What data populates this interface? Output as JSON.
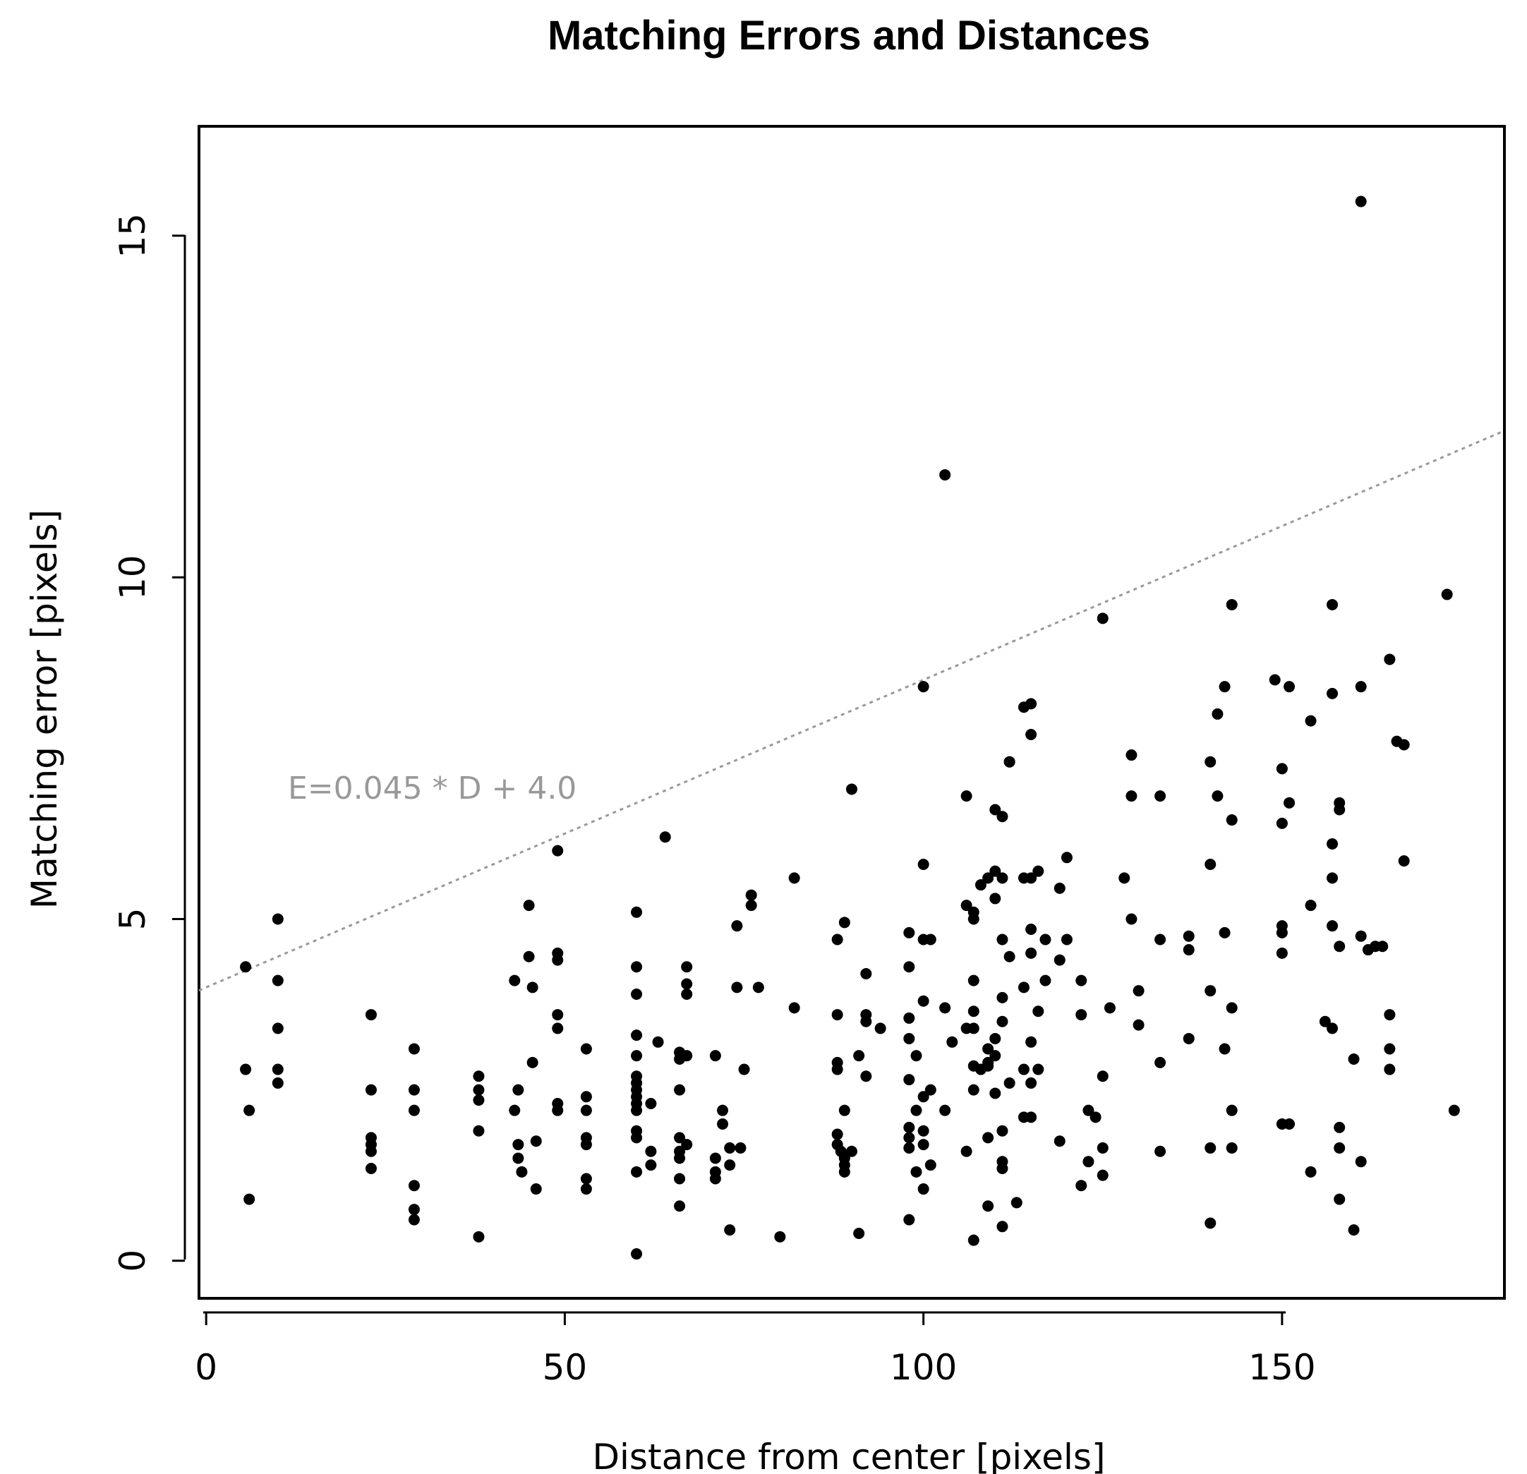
{
  "chart_data": {
    "type": "scatter",
    "title": "Matching Errors and Distances",
    "xlabel": "Distance from center [pixels]",
    "ylabel": "Matching error [pixels]",
    "xlim": [
      -1,
      181
    ],
    "ylim": [
      -0.55,
      16.6
    ],
    "xticks": [
      0,
      50,
      100,
      150
    ],
    "yticks": [
      0,
      5,
      10,
      15
    ],
    "grid": false,
    "legend": "none",
    "point_color": "#000000",
    "fit_line": {
      "label": "E=0.045 * D + 4.0",
      "slope": 0.045,
      "intercept": 4.0,
      "color": "#999999",
      "style": "dotted"
    },
    "points": [
      [
        5.5,
        4.3
      ],
      [
        5.5,
        2.8
      ],
      [
        6,
        2.2
      ],
      [
        6,
        0.9
      ],
      [
        10,
        5
      ],
      [
        10,
        4.1
      ],
      [
        10,
        3.4
      ],
      [
        10,
        2.8
      ],
      [
        10,
        2.6
      ],
      [
        23,
        3.6
      ],
      [
        23,
        2.5
      ],
      [
        23,
        1.8
      ],
      [
        23,
        1.7
      ],
      [
        23,
        1.6
      ],
      [
        23,
        1.35
      ],
      [
        29,
        3.1
      ],
      [
        29,
        2.5
      ],
      [
        29,
        2.2
      ],
      [
        29,
        1.1
      ],
      [
        29,
        0.75
      ],
      [
        29,
        0.6
      ],
      [
        38,
        2.7
      ],
      [
        38,
        2.5
      ],
      [
        38,
        2.35
      ],
      [
        38,
        1.9
      ],
      [
        38,
        0.35
      ],
      [
        43,
        4.1
      ],
      [
        43,
        2.2
      ],
      [
        43.5,
        2.5
      ],
      [
        43.5,
        1.7
      ],
      [
        43.5,
        1.5
      ],
      [
        44,
        1.3
      ],
      [
        45,
        5.2
      ],
      [
        45,
        4.45
      ],
      [
        45.5,
        4
      ],
      [
        45.5,
        2.9
      ],
      [
        46,
        1.75
      ],
      [
        46,
        1.05
      ],
      [
        49,
        6
      ],
      [
        49,
        4.5
      ],
      [
        49,
        4.4
      ],
      [
        49,
        3.6
      ],
      [
        49,
        3.4
      ],
      [
        49,
        2.3
      ],
      [
        49,
        2.2
      ],
      [
        53,
        3.1
      ],
      [
        53,
        2.4
      ],
      [
        53,
        2.2
      ],
      [
        53,
        1.8
      ],
      [
        53,
        1.7
      ],
      [
        53,
        1.2
      ],
      [
        53,
        1.05
      ],
      [
        60,
        5.1
      ],
      [
        60,
        4.3
      ],
      [
        60,
        3.9
      ],
      [
        60,
        3.3
      ],
      [
        60,
        3
      ],
      [
        60,
        2.7
      ],
      [
        60,
        2.6
      ],
      [
        60,
        2.5
      ],
      [
        60,
        2.4
      ],
      [
        60,
        2.3
      ],
      [
        60,
        2.2
      ],
      [
        60,
        1.9
      ],
      [
        60,
        1.8
      ],
      [
        60,
        1.3
      ],
      [
        60,
        0.1
      ],
      [
        62,
        2.3
      ],
      [
        62,
        1.6
      ],
      [
        62,
        1.4
      ],
      [
        63,
        3.2
      ],
      [
        64,
        6.2
      ],
      [
        66,
        3.05
      ],
      [
        66,
        2.95
      ],
      [
        66,
        2.5
      ],
      [
        66,
        1.8
      ],
      [
        66,
        1.6
      ],
      [
        66,
        1.5
      ],
      [
        66,
        1.2
      ],
      [
        66,
        0.8
      ],
      [
        67,
        4.3
      ],
      [
        67,
        4.05
      ],
      [
        67,
        3.9
      ],
      [
        67,
        3.0
      ],
      [
        67,
        1.7
      ],
      [
        71,
        3
      ],
      [
        71,
        1.5
      ],
      [
        71,
        1.3
      ],
      [
        71,
        1.2
      ],
      [
        72,
        2.2
      ],
      [
        72,
        2.0
      ],
      [
        73,
        1.65
      ],
      [
        73,
        1.4
      ],
      [
        73,
        0.45
      ],
      [
        74,
        4.9
      ],
      [
        74,
        4.0
      ],
      [
        74.5,
        1.65
      ],
      [
        75,
        2.8
      ],
      [
        76,
        5.35
      ],
      [
        76,
        5.2
      ],
      [
        77,
        4.0
      ],
      [
        80,
        0.35
      ],
      [
        82,
        5.6
      ],
      [
        82,
        3.7
      ],
      [
        88,
        4.7
      ],
      [
        88,
        3.6
      ],
      [
        88,
        2.9
      ],
      [
        88,
        2.8
      ],
      [
        88,
        1.85
      ],
      [
        88,
        1.7
      ],
      [
        88.5,
        1.6
      ],
      [
        89,
        4.95
      ],
      [
        89,
        1.5
      ],
      [
        89,
        1.4
      ],
      [
        89,
        1.3
      ],
      [
        89,
        2.2
      ],
      [
        90,
        1.6
      ],
      [
        90,
        6.9
      ],
      [
        91,
        3.0
      ],
      [
        91,
        0.4
      ],
      [
        92,
        4.2
      ],
      [
        92,
        3.6
      ],
      [
        92,
        3.5
      ],
      [
        92,
        2.7
      ],
      [
        94,
        3.4
      ],
      [
        98,
        4.8
      ],
      [
        98,
        4.3
      ],
      [
        98,
        3.55
      ],
      [
        98,
        3.25
      ],
      [
        98,
        2.65
      ],
      [
        98,
        1.95
      ],
      [
        98,
        1.8
      ],
      [
        98,
        1.65
      ],
      [
        98,
        0.6
      ],
      [
        99,
        3.0
      ],
      [
        99,
        2.2
      ],
      [
        99,
        1.3
      ],
      [
        100,
        8.4
      ],
      [
        100,
        5.8
      ],
      [
        100,
        4.7
      ],
      [
        100,
        3.8
      ],
      [
        100,
        2.4
      ],
      [
        100,
        1.9
      ],
      [
        100,
        1.7
      ],
      [
        100,
        1.05
      ],
      [
        101,
        4.7
      ],
      [
        101,
        2.5
      ],
      [
        101,
        1.4
      ],
      [
        103,
        11.5
      ],
      [
        103,
        3.7
      ],
      [
        103,
        2.2
      ],
      [
        104,
        3.2
      ],
      [
        106,
        6.8
      ],
      [
        106,
        5.2
      ],
      [
        106,
        3.4
      ],
      [
        106,
        1.6
      ],
      [
        107,
        5.1
      ],
      [
        107,
        5.0
      ],
      [
        107,
        4.1
      ],
      [
        107,
        3.65
      ],
      [
        107,
        3.4
      ],
      [
        107,
        2.85
      ],
      [
        107,
        2.5
      ],
      [
        107,
        0.3
      ],
      [
        108,
        5.5
      ],
      [
        108,
        2.8
      ],
      [
        109,
        5.6
      ],
      [
        109,
        3.1
      ],
      [
        109,
        2.9
      ],
      [
        109,
        2.85
      ],
      [
        109,
        1.8
      ],
      [
        109,
        0.8
      ],
      [
        110,
        6.6
      ],
      [
        110,
        5.7
      ],
      [
        110,
        5.3
      ],
      [
        110,
        3.25
      ],
      [
        110,
        3.0
      ],
      [
        110,
        2.45
      ],
      [
        111,
        6.5
      ],
      [
        111,
        5.6
      ],
      [
        111,
        4.7
      ],
      [
        111,
        3.85
      ],
      [
        111,
        3.5
      ],
      [
        111,
        1.9
      ],
      [
        111,
        1.45
      ],
      [
        111,
        1.35
      ],
      [
        111,
        0.5
      ],
      [
        112,
        7.3
      ],
      [
        112,
        4.45
      ],
      [
        112,
        2.6
      ],
      [
        112,
        7.3
      ],
      [
        113,
        0.85
      ],
      [
        114,
        8.1
      ],
      [
        114,
        5.6
      ],
      [
        114,
        4.0
      ],
      [
        114,
        2.8
      ],
      [
        114,
        2.1
      ],
      [
        115,
        8.15
      ],
      [
        115,
        7.7
      ],
      [
        115,
        5.6
      ],
      [
        115,
        4.85
      ],
      [
        115,
        4.5
      ],
      [
        115,
        3.2
      ],
      [
        115,
        2.6
      ],
      [
        115,
        2.1
      ],
      [
        116,
        5.7
      ],
      [
        116,
        3.65
      ],
      [
        116,
        2.8
      ],
      [
        117,
        4.7
      ],
      [
        117,
        4.1
      ],
      [
        119,
        5.45
      ],
      [
        119,
        4.4
      ],
      [
        119,
        1.75
      ],
      [
        120,
        5.9
      ],
      [
        120,
        4.7
      ],
      [
        122,
        4.1
      ],
      [
        122,
        3.6
      ],
      [
        122,
        1.1
      ],
      [
        123,
        2.2
      ],
      [
        123,
        1.45
      ],
      [
        124,
        2.1
      ],
      [
        125,
        9.4
      ],
      [
        125,
        2.7
      ],
      [
        125,
        1.65
      ],
      [
        125,
        1.25
      ],
      [
        126,
        3.7
      ],
      [
        128,
        5.6
      ],
      [
        129,
        7.4
      ],
      [
        129,
        6.8
      ],
      [
        129,
        5.0
      ],
      [
        130,
        3.95
      ],
      [
        130,
        3.45
      ],
      [
        133,
        6.8
      ],
      [
        133,
        4.7
      ],
      [
        133,
        2.9
      ],
      [
        133,
        1.6
      ],
      [
        137,
        4.55
      ],
      [
        137,
        3.25
      ],
      [
        137,
        4.75
      ],
      [
        140,
        7.3
      ],
      [
        140,
        5.8
      ],
      [
        140,
        3.95
      ],
      [
        140,
        1.65
      ],
      [
        140,
        0.55
      ],
      [
        141,
        8.0
      ],
      [
        141,
        6.8
      ],
      [
        142,
        8.4
      ],
      [
        142,
        4.8
      ],
      [
        142,
        3.1
      ],
      [
        143,
        9.6
      ],
      [
        143,
        6.45
      ],
      [
        143,
        3.7
      ],
      [
        143,
        2.2
      ],
      [
        143,
        1.65
      ],
      [
        149,
        8.5
      ],
      [
        150,
        7.2
      ],
      [
        150,
        6.4
      ],
      [
        150,
        4.9
      ],
      [
        150,
        4.8
      ],
      [
        150,
        4.5
      ],
      [
        150,
        2.0
      ],
      [
        151,
        8.4
      ],
      [
        151,
        6.7
      ],
      [
        151,
        2.0
      ],
      [
        154,
        7.9
      ],
      [
        154,
        5.2
      ],
      [
        154,
        1.3
      ],
      [
        156,
        3.5
      ],
      [
        157,
        3.4
      ],
      [
        157,
        9.6
      ],
      [
        157,
        6.1
      ],
      [
        157,
        5.6
      ],
      [
        157,
        4.9
      ],
      [
        157,
        8.3
      ],
      [
        158,
        6.6
      ],
      [
        158,
        6.7
      ],
      [
        158,
        4.6
      ],
      [
        158,
        1.95
      ],
      [
        158,
        1.65
      ],
      [
        158,
        0.9
      ],
      [
        160,
        2.95
      ],
      [
        160,
        0.45
      ],
      [
        161,
        15.5
      ],
      [
        161,
        8.4
      ],
      [
        161,
        4.75
      ],
      [
        161,
        1.45
      ],
      [
        162,
        4.55
      ],
      [
        163,
        4.6
      ],
      [
        164,
        4.6
      ],
      [
        165,
        8.8
      ],
      [
        165,
        3.6
      ],
      [
        165,
        3.1
      ],
      [
        165,
        2.8
      ],
      [
        166,
        7.6
      ],
      [
        167,
        5.85
      ],
      [
        167,
        7.55
      ],
      [
        173,
        9.75
      ],
      [
        174,
        2.2
      ]
    ]
  }
}
